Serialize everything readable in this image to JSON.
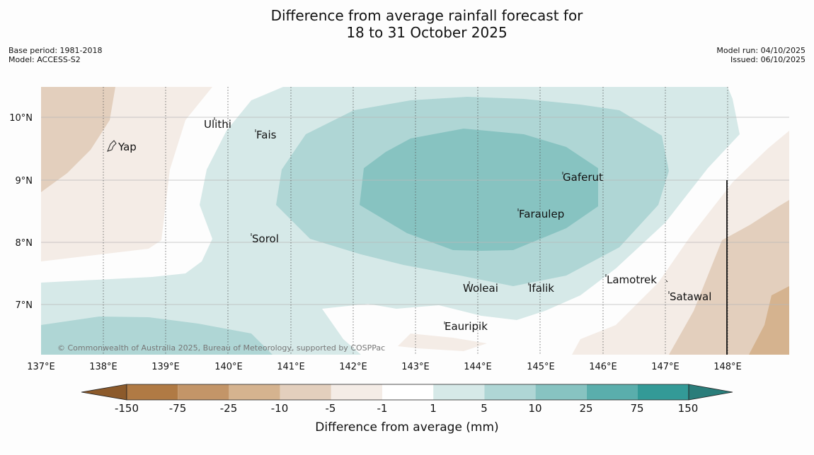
{
  "title_line1": "Difference from average rainfall forecast for",
  "title_line2": "18 to 31 October 2025",
  "meta_left": [
    "Base period: 1981-2018",
    "Model: ACCESS-S2"
  ],
  "meta_right": [
    "Model run: 04/10/2025",
    "Issued: 06/10/2025"
  ],
  "lon_labels": [
    "137°E",
    "138°E",
    "139°E",
    "140°E",
    "141°E",
    "142°E",
    "143°E",
    "144°E",
    "145°E",
    "146°E",
    "147°E",
    "148°E"
  ],
  "lat_labels": [
    "10°N",
    "9°N",
    "8°N",
    "7°N"
  ],
  "places": [
    "Ulithi",
    "Fais",
    "Yap",
    "Gaferut",
    "Faraulep",
    "Sorol",
    "Lamotrek",
    "Woleai",
    "Ifalik",
    "Satawal",
    "Eauripik"
  ],
  "copyright": "© Commonwealth of Australia 2025, Bureau of Meteorology, supported by COSPPac",
  "colorbar": {
    "ticks": [
      "-150",
      "-75",
      "-25",
      "-10",
      "-5",
      "-1",
      "1",
      "5",
      "10",
      "25",
      "75",
      "150"
    ],
    "colors": [
      "#8c5a2b",
      "#b07a44",
      "#c39568",
      "#d5b38f",
      "#e3cfbd",
      "#f4ece6",
      "#ffffff",
      "#d6e9e8",
      "#afd6d5",
      "#87c3c1",
      "#5aaeac",
      "#339a97",
      "#2a7d7a"
    ],
    "label": "Difference from average (mm)"
  }
}
